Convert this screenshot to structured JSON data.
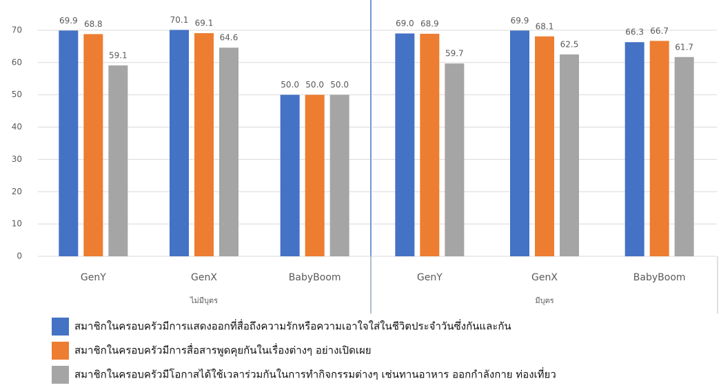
{
  "chart_data": {
    "type": "bar",
    "categories": [
      "GenY",
      "GenX",
      "BabyBoom",
      "GenY",
      "GenX",
      "BabyBoom"
    ],
    "groups": [
      {
        "label": "ไม่มีบุตร",
        "size": 3
      },
      {
        "label": "มีบุตร",
        "size": 3
      }
    ],
    "series": [
      {
        "name": "สมาชิกในครอบครัวมีการแสดงออกที่สื่อถึงความรักหรือความเอาใจใส่ในชีวิตประจำวันซึ่งกันและกัน",
        "color": "#4472c4",
        "values": [
          69.9,
          70.1,
          50,
          69,
          69.9,
          66.3
        ],
        "value_labels": [
          "69.9",
          "70.1",
          "50.0",
          "69.0",
          "69.9",
          "66.3"
        ]
      },
      {
        "name": "สมาชิกในครอบครัวมีการสื่อสารพูดคุยกันในเรื่องต่างๆ อย่างเปิดเผย",
        "color": "#ed7d31",
        "values": [
          68.8,
          69.1,
          50,
          68.9,
          68.1,
          66.7
        ],
        "value_labels": [
          "68.8",
          "69.1",
          "50.0",
          "68.9",
          "68.1",
          "66.7"
        ]
      },
      {
        "name": "สมาชิกในครอบครัวมีโอกาสได้ใช้เวลาร่วมกันในการทำกิจกรรมต่างๆ เช่นทานอาหาร ออกกำลังกาย ท่องเที่ยว",
        "color": "#a5a5a5",
        "values": [
          59.1,
          64.6,
          50,
          59.7,
          62.5,
          61.7
        ],
        "value_labels": [
          "59.1",
          "64.6",
          "50.0",
          "59.7",
          "62.5",
          "61.7"
        ]
      }
    ],
    "ylim": [
      0,
      80
    ],
    "yticks": [
      0,
      10,
      20,
      30,
      40,
      50,
      60,
      70
    ],
    "grid": true
  }
}
